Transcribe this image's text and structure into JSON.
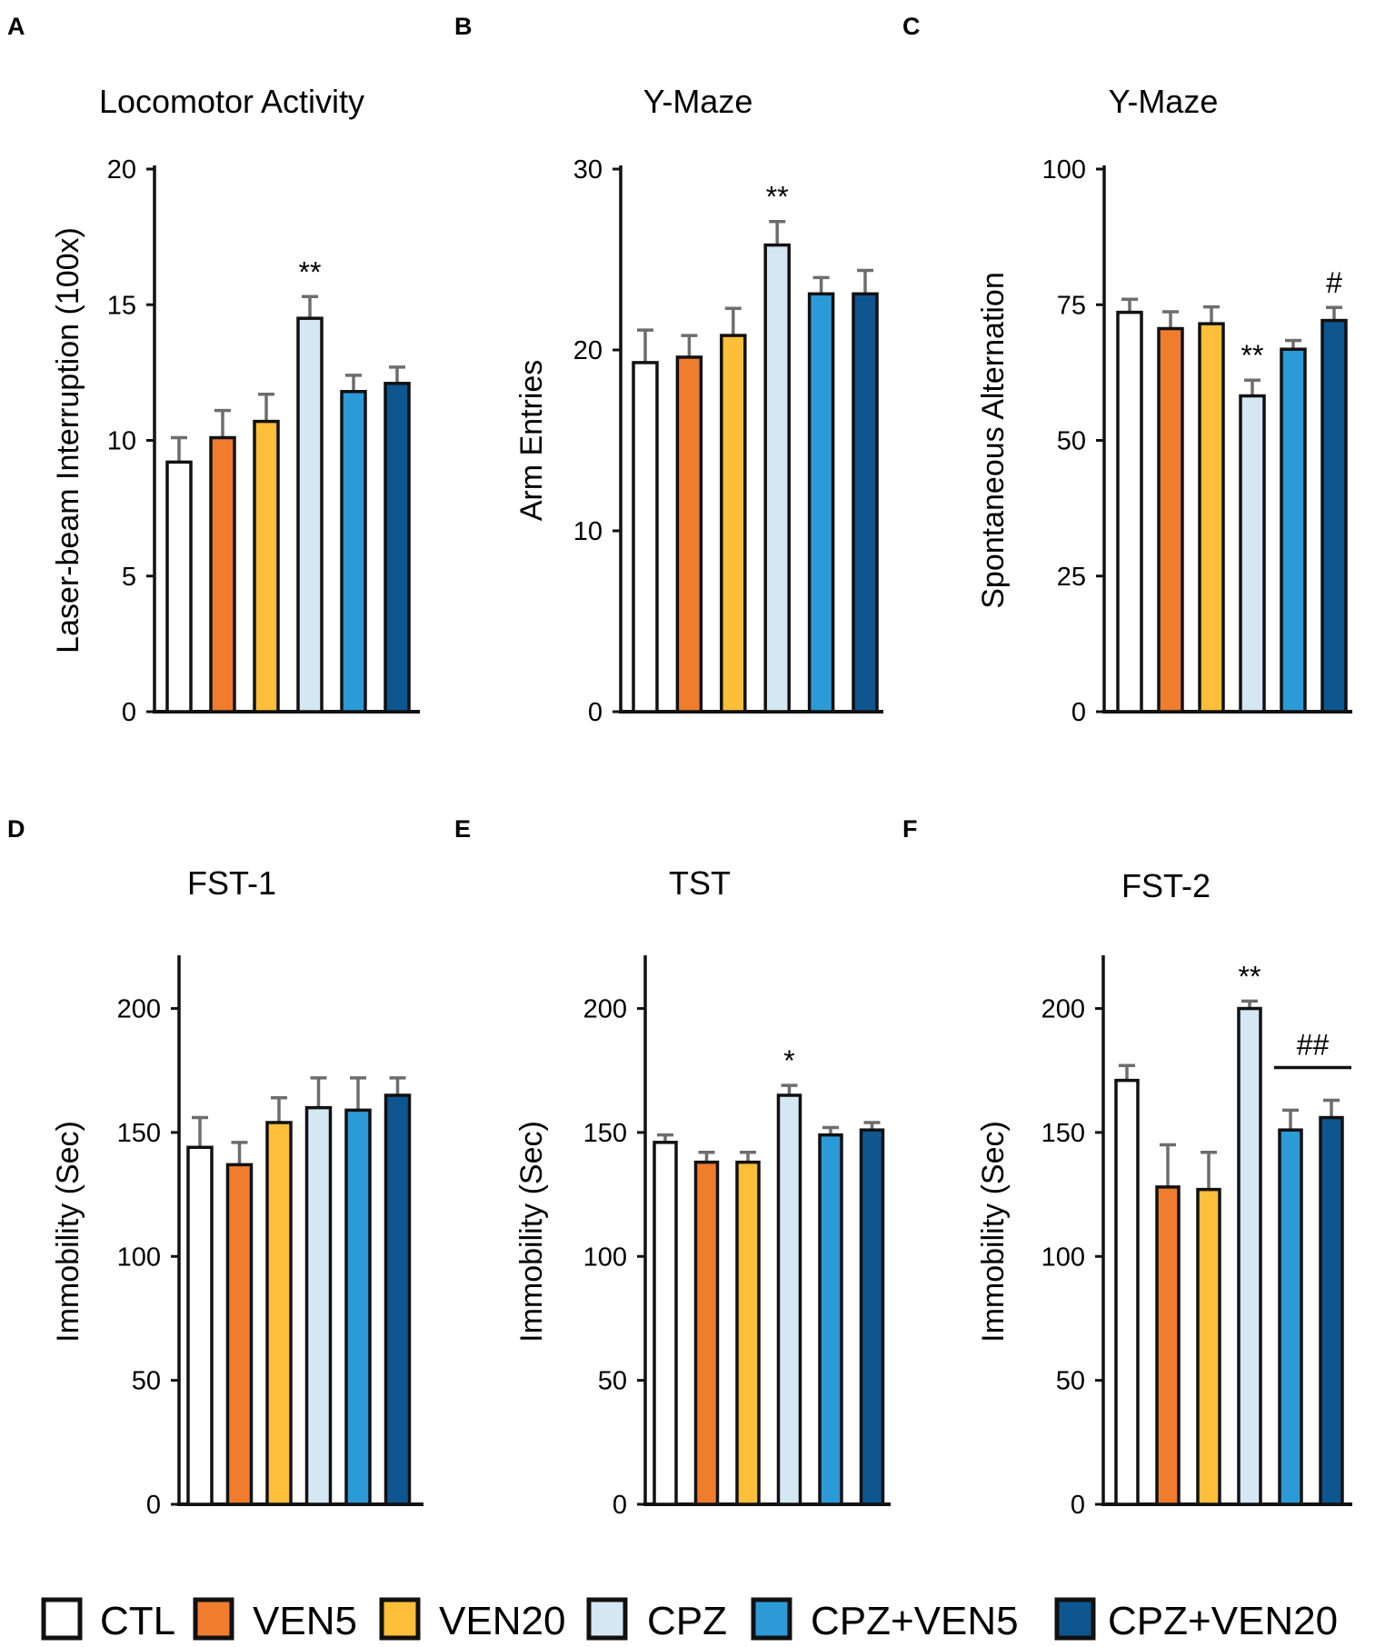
{
  "groups": [
    {
      "name": "CTL",
      "color": "#ffffff"
    },
    {
      "name": "VEN5",
      "color": "#f07c2e"
    },
    {
      "name": "VEN20",
      "color": "#fdbe3a"
    },
    {
      "name": "CPZ",
      "color": "#d4e7f2"
    },
    {
      "name": "CPZ+VEN5",
      "color": "#2c9ad6"
    },
    {
      "name": "CPZ+VEN20",
      "color": "#0e568f"
    }
  ],
  "errorbar_color": "#6d6d6d",
  "chart_data": [
    {
      "panel": "A",
      "type": "bar",
      "title": "Locomotor Activity",
      "ylabel": "Laser-beam Interruption (100x)",
      "xlabel": "",
      "categories": [
        "CTL",
        "VEN5",
        "VEN20",
        "CPZ",
        "CPZ+VEN5",
        "CPZ+VEN20"
      ],
      "values": [
        9.2,
        10.1,
        10.7,
        14.5,
        11.8,
        12.1
      ],
      "errors": [
        0.9,
        1.0,
        1.0,
        0.8,
        0.6,
        0.6
      ],
      "ylim": [
        0,
        20
      ],
      "yticks": [
        0,
        5,
        10,
        15,
        20
      ],
      "annotations": [
        {
          "index": 3,
          "text": "**"
        }
      ]
    },
    {
      "panel": "B",
      "type": "bar",
      "title": "Y-Maze",
      "ylabel": "Arm Entries",
      "xlabel": "",
      "categories": [
        "CTL",
        "VEN5",
        "VEN20",
        "CPZ",
        "CPZ+VEN5",
        "CPZ+VEN20"
      ],
      "values": [
        19.3,
        19.6,
        20.8,
        25.8,
        23.1,
        23.1
      ],
      "errors": [
        1.8,
        1.2,
        1.5,
        1.3,
        0.9,
        1.3
      ],
      "ylim": [
        0,
        30
      ],
      "yticks": [
        0,
        10,
        20,
        30
      ],
      "annotations": [
        {
          "index": 3,
          "text": "**"
        }
      ]
    },
    {
      "panel": "C",
      "type": "bar",
      "title": "Y-Maze",
      "ylabel": "Spontaneous Alternation",
      "xlabel": "",
      "categories": [
        "CTL",
        "VEN5",
        "VEN20",
        "CPZ",
        "CPZ+VEN5",
        "CPZ+VEN20"
      ],
      "values": [
        73.6,
        70.6,
        71.5,
        58.2,
        66.8,
        72.1
      ],
      "errors": [
        2.4,
        3.1,
        3.1,
        2.9,
        1.6,
        2.4
      ],
      "ylim": [
        0,
        100
      ],
      "yticks": [
        0,
        25,
        50,
        75,
        100
      ],
      "annotations": [
        {
          "index": 3,
          "text": "**"
        },
        {
          "index": 5,
          "text": "#"
        }
      ]
    },
    {
      "panel": "D",
      "type": "bar",
      "title": "FST-1",
      "ylabel": "Immobility (Sec)",
      "xlabel": "",
      "categories": [
        "CTL",
        "VEN5",
        "VEN20",
        "CPZ",
        "CPZ+VEN5",
        "CPZ+VEN20"
      ],
      "values": [
        144,
        137,
        154,
        160,
        159,
        165
      ],
      "errors": [
        12,
        9,
        10,
        12,
        13,
        7
      ],
      "ylim": [
        0,
        220
      ],
      "yticks": [
        0,
        50,
        100,
        150,
        200
      ],
      "annotations": []
    },
    {
      "panel": "E",
      "type": "bar",
      "title": "TST",
      "ylabel": "Immobility (Sec)",
      "xlabel": "",
      "categories": [
        "CTL",
        "VEN5",
        "VEN20",
        "CPZ",
        "CPZ+VEN5",
        "CPZ+VEN20"
      ],
      "values": [
        146,
        138,
        138,
        165,
        149,
        151
      ],
      "errors": [
        3,
        4,
        4,
        4,
        3,
        3
      ],
      "ylim": [
        0,
        220
      ],
      "yticks": [
        0,
        50,
        100,
        150,
        200
      ],
      "annotations": [
        {
          "index": 3,
          "text": "*"
        }
      ]
    },
    {
      "panel": "F",
      "type": "bar",
      "title": "FST-2",
      "ylabel": "Immobility (Sec)",
      "xlabel": "",
      "categories": [
        "CTL",
        "VEN5",
        "VEN20",
        "CPZ",
        "CPZ+VEN5",
        "CPZ+VEN20"
      ],
      "values": [
        171,
        128,
        127,
        200,
        151,
        156
      ],
      "errors": [
        6,
        17,
        15,
        3,
        8,
        7
      ],
      "ylim": [
        0,
        220
      ],
      "yticks": [
        0,
        50,
        100,
        150,
        200
      ],
      "annotations": [
        {
          "index": 3,
          "text": "**"
        },
        {
          "from": 4,
          "to": 5,
          "text": "##",
          "bracket": true
        }
      ]
    }
  ]
}
